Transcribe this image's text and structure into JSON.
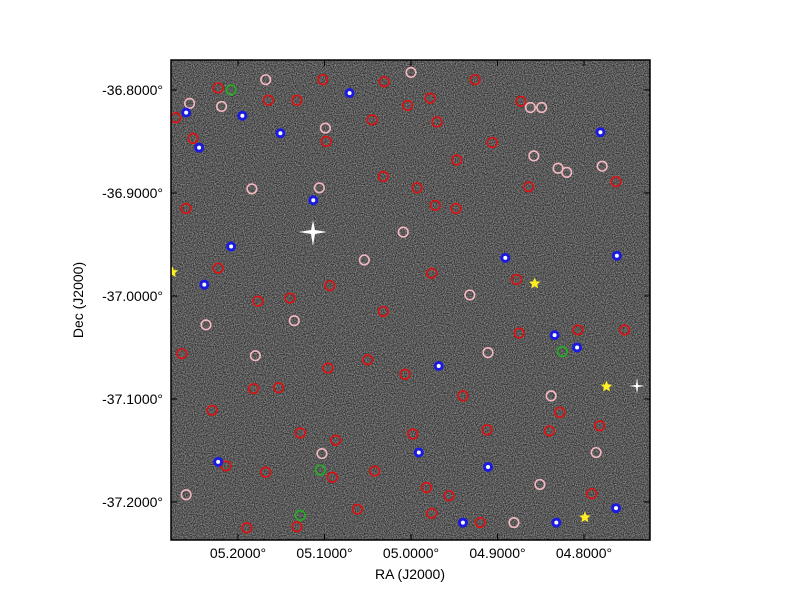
{
  "chart_data": {
    "type": "scatter",
    "x_label": "RA (J2000)",
    "y_label": "Dec (J2000)",
    "xlim": [
      5.2775,
      4.7237
    ],
    "ylim": [
      -37.2369,
      -36.7709
    ],
    "xticks": [
      {
        "value": 5.2,
        "label": "05.2000°"
      },
      {
        "value": 5.1,
        "label": "05.1000°"
      },
      {
        "value": 5.0,
        "label": "05.0000°"
      },
      {
        "value": 4.9,
        "label": "04.9000°"
      },
      {
        "value": 4.8,
        "label": "04.8000°"
      }
    ],
    "yticks": [
      {
        "value": -36.8,
        "label": "-36.8000°"
      },
      {
        "value": -36.9,
        "label": "-36.9000°"
      },
      {
        "value": -37.0,
        "label": "-37.0000°"
      },
      {
        "value": -37.1,
        "label": "-37.1000°"
      },
      {
        "value": -37.2,
        "label": "-37.2000°"
      }
    ],
    "series": [
      {
        "color": "#e01010",
        "marker": "ring",
        "x": [
          5.272,
          5.252,
          5.223,
          5.165,
          5.132,
          5.102,
          5.031,
          4.978,
          4.926,
          4.873,
          5.098,
          5.045,
          5.004,
          4.97,
          4.906,
          4.947,
          4.864,
          4.763,
          5.032,
          4.993,
          4.948,
          4.972,
          5.26,
          5.223,
          5.177,
          5.14,
          5.094,
          5.032,
          4.976,
          4.878,
          4.875,
          4.807,
          4.753,
          5.265,
          5.182,
          5.153,
          5.096,
          5.05,
          5.007,
          4.94,
          4.84,
          4.782,
          5.23,
          5.128,
          5.087,
          4.998,
          4.912,
          4.828,
          5.214,
          5.168,
          5.091,
          5.042,
          4.982,
          4.956,
          4.791,
          5.19,
          5.132,
          5.062,
          4.976,
          4.92
        ],
        "y": [
          -36.827,
          -36.847,
          -36.798,
          -36.81,
          -36.81,
          -36.79,
          -36.792,
          -36.808,
          -36.79,
          -36.811,
          -36.85,
          -36.829,
          -36.815,
          -36.831,
          -36.851,
          -36.868,
          -36.894,
          -36.889,
          -36.884,
          -36.895,
          -36.915,
          -36.912,
          -36.915,
          -36.973,
          -37.005,
          -37.002,
          -36.99,
          -37.015,
          -36.978,
          -36.984,
          -37.036,
          -37.033,
          -37.033,
          -37.056,
          -37.09,
          -37.089,
          -37.07,
          -37.062,
          -37.076,
          -37.097,
          -37.131,
          -37.126,
          -37.111,
          -37.133,
          -37.14,
          -37.134,
          -37.13,
          -37.113,
          -37.165,
          -37.171,
          -37.176,
          -37.17,
          -37.186,
          -37.194,
          -37.192,
          -37.225,
          -37.224,
          -37.207,
          -37.211,
          -37.22
        ]
      },
      {
        "color": "#f4b8c0",
        "marker": "ring",
        "x": [
          5.256,
          5.219,
          5.168,
          5.106,
          5.099,
          5.0,
          4.862,
          4.849,
          4.858,
          4.83,
          4.82,
          4.779,
          5.184,
          5.009,
          5.054,
          4.932,
          5.237,
          4.911,
          4.838,
          5.135,
          5.18,
          5.103,
          4.851,
          4.786,
          5.26,
          4.881
        ],
        "y": [
          -36.813,
          -36.816,
          -36.79,
          -36.895,
          -36.837,
          -36.783,
          -36.817,
          -36.817,
          -36.864,
          -36.876,
          -36.88,
          -36.874,
          -36.896,
          -36.938,
          -36.965,
          -36.999,
          -37.028,
          -37.055,
          -37.097,
          -37.024,
          -37.058,
          -37.153,
          -37.183,
          -37.152,
          -37.193,
          -37.22
        ]
      },
      {
        "color": "#1a1ae0",
        "marker": "dot",
        "x": [
          5.26,
          5.245,
          5.195,
          5.151,
          5.113,
          5.071,
          5.208,
          5.239,
          4.891,
          4.834,
          4.808,
          4.968,
          4.911,
          4.991,
          4.94,
          4.832,
          4.762,
          4.763,
          5.223,
          4.781
        ],
        "y": [
          -36.822,
          -36.856,
          -36.825,
          -36.842,
          -36.907,
          -36.803,
          -36.952,
          -36.989,
          -36.963,
          -37.038,
          -37.05,
          -37.068,
          -37.166,
          -37.152,
          -37.22,
          -37.22,
          -36.961,
          -37.206,
          -37.161,
          -36.841
        ]
      },
      {
        "color": "#22b022",
        "marker": "ring",
        "x": [
          5.208,
          5.105,
          5.128,
          4.825
        ],
        "y": [
          -36.8,
          -37.169,
          -37.213,
          -37.054
        ]
      },
      {
        "color": "#ffee22",
        "marker": "star",
        "x": [
          4.857,
          4.774,
          4.799,
          5.276
        ],
        "y": [
          -36.988,
          -37.088,
          -37.215,
          -36.977
        ]
      }
    ]
  }
}
